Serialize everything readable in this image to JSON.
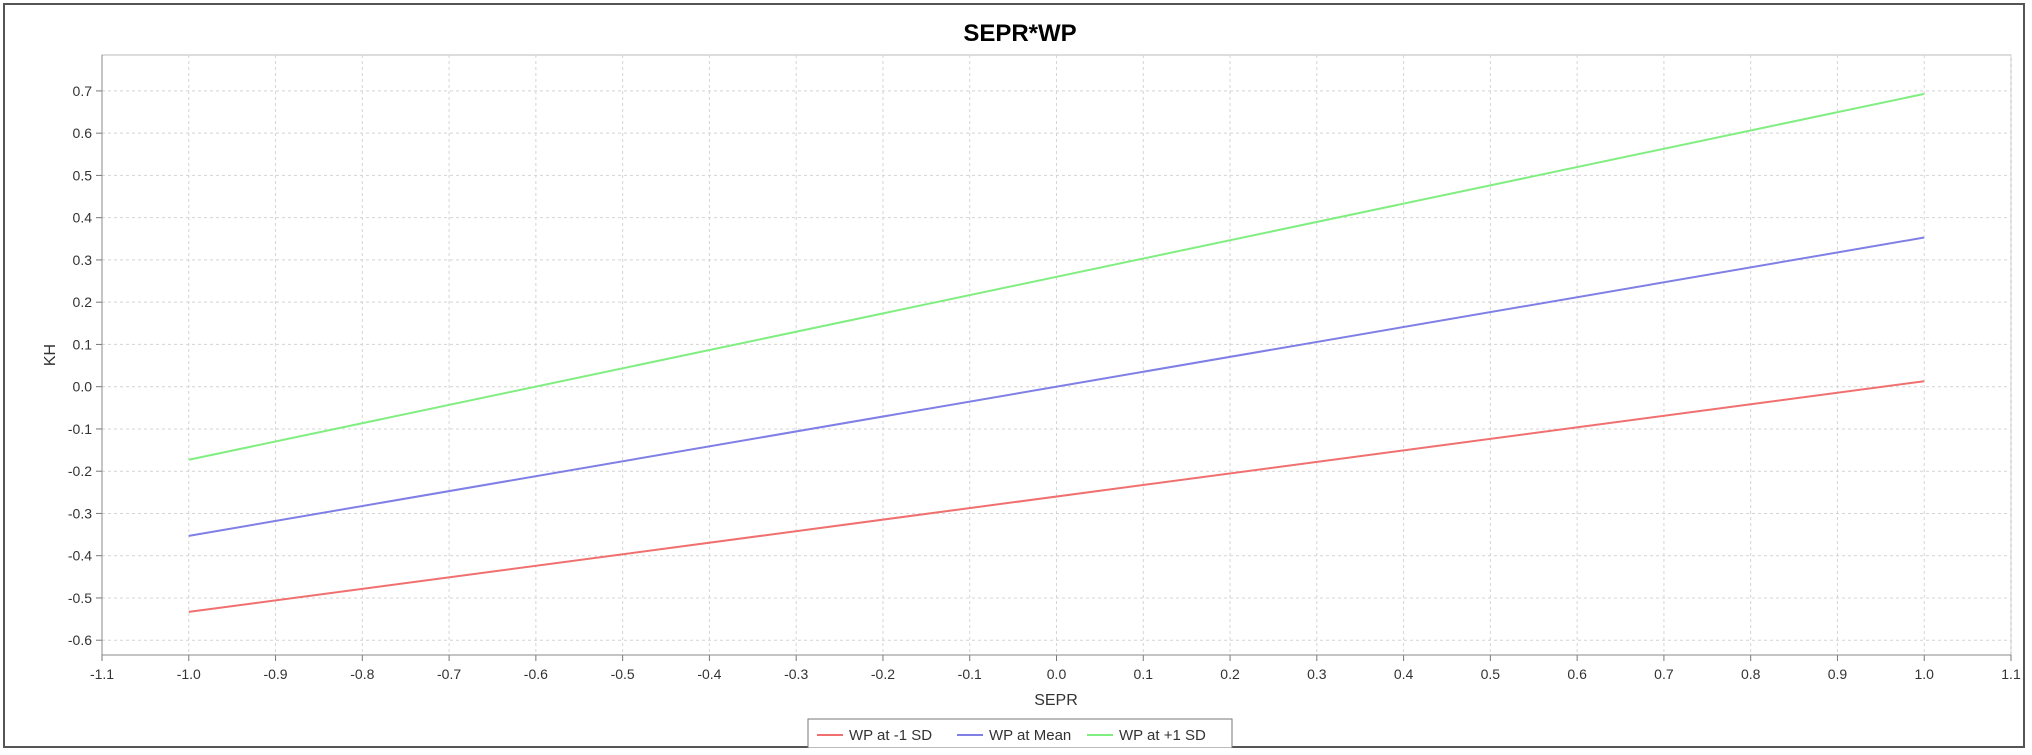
{
  "chart_data": {
    "type": "line",
    "title": "SEPR*WP",
    "xlabel": "SEPR",
    "ylabel": "KH",
    "xlim": [
      -1.1,
      1.1
    ],
    "ylim": [
      -0.635,
      0.785
    ],
    "xticks": [
      "-1.1",
      "-1.0",
      "-0.9",
      "-0.8",
      "-0.7",
      "-0.6",
      "-0.5",
      "-0.4",
      "-0.3",
      "-0.2",
      "-0.1",
      "0.0",
      "0.1",
      "0.2",
      "0.3",
      "0.4",
      "0.5",
      "0.6",
      "0.7",
      "0.8",
      "0.9",
      "1.0",
      "1.1"
    ],
    "yticks": [
      "0.7",
      "0.6",
      "0.5",
      "0.4",
      "0.3",
      "0.2",
      "0.1",
      "0.0",
      "-0.1",
      "-0.2",
      "-0.3",
      "-0.4",
      "-0.5",
      "-0.6"
    ],
    "grid": true,
    "legend_position": "bottom",
    "series": [
      {
        "name": "WP at -1 SD",
        "color": "#f07070",
        "x": [
          -1.0,
          1.0
        ],
        "y": [
          -0.533,
          0.013
        ]
      },
      {
        "name": "WP at Mean",
        "color": "#7f7fe6",
        "x": [
          -1.0,
          1.0
        ],
        "y": [
          -0.353,
          0.353
        ]
      },
      {
        "name": "WP at +1 SD",
        "color": "#80ee80",
        "x": [
          -1.0,
          1.0
        ],
        "y": [
          -0.173,
          0.693
        ]
      }
    ]
  }
}
